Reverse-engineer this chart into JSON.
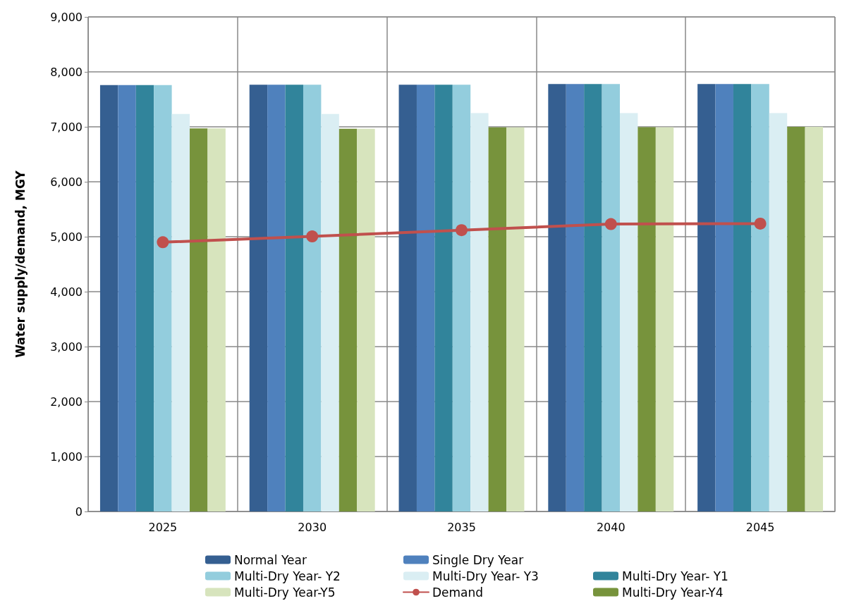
{
  "chart_data": {
    "type": "bar",
    "ylabel": "Water supply/demand, MGY",
    "categories": [
      "2025",
      "2030",
      "2035",
      "2040",
      "2045"
    ],
    "ylim": [
      0,
      9000
    ],
    "yticks": [
      {
        "value": 0,
        "label": "0"
      },
      {
        "value": 1000,
        "label": "1,000"
      },
      {
        "value": 2000,
        "label": "2,000"
      },
      {
        "value": 3000,
        "label": "3,000"
      },
      {
        "value": 4000,
        "label": "4,000"
      },
      {
        "value": 5000,
        "label": "5,000"
      },
      {
        "value": 6000,
        "label": "6,000"
      },
      {
        "value": 7000,
        "label": "7,000"
      },
      {
        "value": 8000,
        "label": "8,000"
      },
      {
        "value": 9000,
        "label": "9,000"
      }
    ],
    "grid": true,
    "legend": "bottom",
    "series": [
      {
        "name": "Normal Year",
        "color": "#355f91",
        "values": [
          7760,
          7765,
          7765,
          7780,
          7780
        ]
      },
      {
        "name": "Single Dry Year",
        "color": "#4f81bd",
        "values": [
          7760,
          7765,
          7765,
          7780,
          7780
        ]
      },
      {
        "name": "Multi-Dry Year- Y1",
        "color": "#31849b",
        "values": [
          7760,
          7765,
          7765,
          7780,
          7780
        ]
      },
      {
        "name": "Multi-Dry Year- Y2",
        "color": "#93cddd",
        "values": [
          7760,
          7765,
          7765,
          7780,
          7780
        ]
      },
      {
        "name": "Multi-Dry Year- Y3",
        "color": "#daeef3",
        "values": [
          7235,
          7235,
          7250,
          7250,
          7250
        ]
      },
      {
        "name": "Multi-Dry Year-Y4",
        "color": "#77933c",
        "values": [
          6970,
          6965,
          6990,
          6995,
          7000
        ]
      },
      {
        "name": "Multi-Dry Year-Y5",
        "color": "#d7e4bd",
        "values": [
          6970,
          6965,
          6990,
          6995,
          7000
        ]
      },
      {
        "name": "Demand",
        "type": "line",
        "color": "#c0504d",
        "marker": "circle",
        "values": [
          4900,
          5005,
          5120,
          5230,
          5238
        ]
      }
    ]
  }
}
